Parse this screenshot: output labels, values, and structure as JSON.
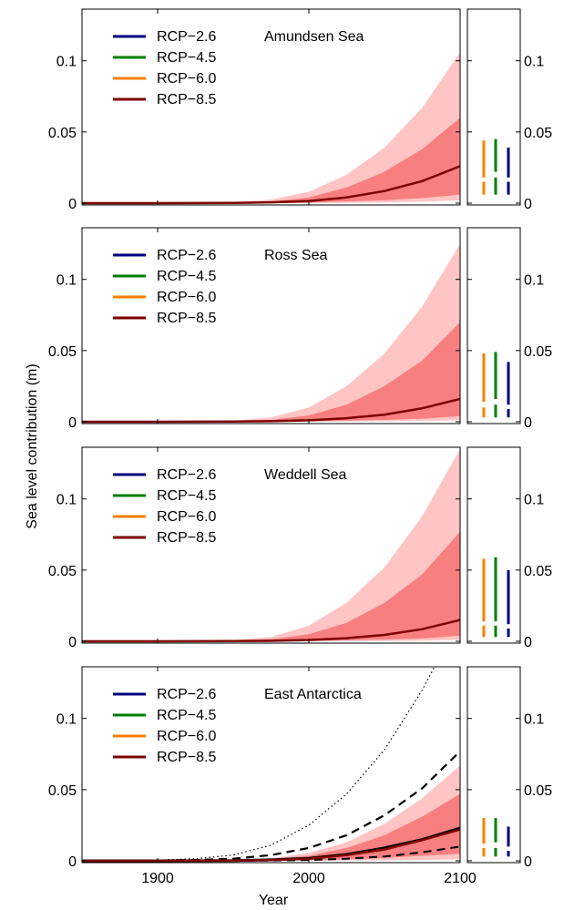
{
  "ylabel": "Sea level contribution (m)",
  "xlabel": "Year",
  "xticks": [
    "1900",
    "2000",
    "2100"
  ],
  "yticks": [
    "0",
    "0.05",
    "0.1"
  ],
  "legend": [
    {
      "label": "RCP−2.6",
      "color": "#00007f"
    },
    {
      "label": "RCP−4.5",
      "color": "#007f00"
    },
    {
      "label": "RCP−6.0",
      "color": "#ff7f00"
    },
    {
      "label": "RCP−8.5",
      "color": "#7f0000"
    }
  ],
  "colors": {
    "band_outer": "#ffc4c4",
    "band_inner": "#f77f7f",
    "median": "#7f0000",
    "axis": "#000000"
  },
  "chart_data": [
    {
      "type": "area",
      "title": "Amundsen Sea",
      "xlim": [
        1850,
        2100
      ],
      "ylim": [
        0,
        0.135
      ],
      "years": [
        1850,
        1900,
        1950,
        1975,
        2000,
        2025,
        2050,
        2075,
        2100
      ],
      "median": [
        0,
        0,
        0.0002,
        0.0006,
        0.0015,
        0.004,
        0.0085,
        0.0155,
        0.026
      ],
      "band_inner": {
        "lower": [
          0,
          0,
          0,
          0.0002,
          0.0005,
          0.0012,
          0.002,
          0.0035,
          0.006
        ],
        "upper": [
          0,
          0,
          0.0004,
          0.0012,
          0.004,
          0.011,
          0.022,
          0.038,
          0.06
        ]
      },
      "band_outer": {
        "lower": [
          0,
          0,
          0,
          0,
          0,
          0.0002,
          0.0005,
          0.001,
          0.002
        ],
        "upper": [
          0,
          0,
          0.0006,
          0.0025,
          0.008,
          0.02,
          0.039,
          0.067,
          0.106
        ]
      },
      "ranges_2100": [
        {
          "scenario": "RCP−6.0",
          "inner": [
            0.018,
            0.044
          ],
          "outer": [
            0.006,
            0.015
          ]
        },
        {
          "scenario": "RCP−4.5",
          "inner": [
            0.022,
            0.045
          ],
          "outer": [
            0.006,
            0.018
          ]
        },
        {
          "scenario": "RCP−2.6",
          "inner": [
            0.018,
            0.039
          ],
          "outer": [
            0.006,
            0.015
          ]
        }
      ]
    },
    {
      "type": "area",
      "title": "Ross Sea",
      "xlim": [
        1850,
        2100
      ],
      "ylim": [
        0,
        0.135
      ],
      "years": [
        1850,
        1900,
        1950,
        1975,
        2000,
        2025,
        2050,
        2075,
        2100
      ],
      "median": [
        0,
        0,
        0.0001,
        0.0004,
        0.001,
        0.0025,
        0.005,
        0.0095,
        0.016
      ],
      "band_inner": {
        "lower": [
          0,
          0,
          0,
          0.0001,
          0.0003,
          0.0008,
          0.0013,
          0.0022,
          0.004
        ],
        "upper": [
          0,
          0,
          0.0004,
          0.0013,
          0.0045,
          0.012,
          0.025,
          0.043,
          0.07
        ]
      },
      "band_outer": {
        "lower": [
          0,
          0,
          0,
          0,
          0,
          0.0001,
          0.0003,
          0.0006,
          0.001
        ],
        "upper": [
          0,
          0,
          0.0007,
          0.003,
          0.01,
          0.025,
          0.048,
          0.081,
          0.125
        ]
      },
      "ranges_2100": [
        {
          "scenario": "RCP−6.0",
          "inner": [
            0.014,
            0.048
          ],
          "outer": [
            0.003,
            0.01
          ]
        },
        {
          "scenario": "RCP−4.5",
          "inner": [
            0.016,
            0.049
          ],
          "outer": [
            0.003,
            0.012
          ]
        },
        {
          "scenario": "RCP−2.6",
          "inner": [
            0.012,
            0.042
          ],
          "outer": [
            0.003,
            0.009
          ]
        }
      ]
    },
    {
      "type": "area",
      "title": "Weddell Sea",
      "xlim": [
        1850,
        2100
      ],
      "ylim": [
        0,
        0.135
      ],
      "years": [
        1850,
        1900,
        1950,
        1975,
        2000,
        2025,
        2050,
        2075,
        2100
      ],
      "median": [
        0,
        0,
        0.0001,
        0.0003,
        0.0009,
        0.0022,
        0.0045,
        0.0085,
        0.015
      ],
      "band_inner": {
        "lower": [
          0,
          0,
          0,
          0.0001,
          0.0003,
          0.0007,
          0.0012,
          0.002,
          0.004
        ],
        "upper": [
          0,
          0,
          0.0004,
          0.0015,
          0.005,
          0.013,
          0.027,
          0.047,
          0.077
        ]
      },
      "band_outer": {
        "lower": [
          0,
          0,
          0,
          0,
          0,
          0.0001,
          0.0002,
          0.0005,
          0.001
        ],
        "upper": [
          0,
          0,
          0.0008,
          0.003,
          0.011,
          0.027,
          0.052,
          0.088,
          0.135
        ]
      },
      "ranges_2100": [
        {
          "scenario": "RCP−6.0",
          "inner": [
            0.014,
            0.058
          ],
          "outer": [
            0.003,
            0.011
          ]
        },
        {
          "scenario": "RCP−4.5",
          "inner": [
            0.014,
            0.059
          ],
          "outer": [
            0.003,
            0.011
          ]
        },
        {
          "scenario": "RCP−2.6",
          "inner": [
            0.012,
            0.05
          ],
          "outer": [
            0.003,
            0.009
          ]
        }
      ]
    },
    {
      "type": "area",
      "title": "East Antarctica",
      "xlim": [
        1850,
        2100
      ],
      "ylim": [
        0,
        0.135
      ],
      "years": [
        1850,
        1900,
        1950,
        1975,
        2000,
        2025,
        2050,
        2075,
        2100
      ],
      "median": [
        0,
        0,
        0.0002,
        0.0006,
        0.0015,
        0.004,
        0.008,
        0.0145,
        0.022
      ],
      "band_inner": {
        "lower": [
          0,
          0,
          0,
          0.0002,
          0.0005,
          0.001,
          0.002,
          0.0035,
          0.005
        ],
        "upper": [
          0,
          0,
          0.0004,
          0.0012,
          0.0035,
          0.009,
          0.018,
          0.031,
          0.047
        ]
      },
      "band_outer": {
        "lower": [
          0,
          0,
          0,
          0,
          0,
          0.0001,
          0.0003,
          0.0006,
          0.001
        ],
        "upper": [
          0,
          0,
          0.0006,
          0.0018,
          0.0055,
          0.013,
          0.026,
          0.044,
          0.067
        ]
      },
      "dashed": {
        "years": [
          1850,
          1900,
          1925,
          1950,
          1975,
          2000,
          2025,
          2050,
          2075,
          2100
        ],
        "values": [
          0,
          0.0002,
          0.0006,
          0.0015,
          0.004,
          0.009,
          0.018,
          0.032,
          0.051,
          0.077
        ]
      },
      "solid_black": {
        "years": [
          1850,
          1900,
          1950,
          1975,
          2000,
          2025,
          2050,
          2075,
          2100
        ],
        "values": [
          0,
          0,
          0.0002,
          0.0007,
          0.0018,
          0.0045,
          0.009,
          0.015,
          0.023
        ]
      },
      "dashed_lower": {
        "years": [
          1850,
          1900,
          1950,
          1975,
          2000,
          2025,
          2050,
          2075,
          2100
        ],
        "values": [
          0,
          0,
          0,
          0.0002,
          0.0006,
          0.0015,
          0.003,
          0.006,
          0.01
        ]
      },
      "dotted": {
        "years": [
          1850,
          1900,
          1925,
          1950,
          1975,
          2000,
          2025,
          2050,
          2075,
          2085
        ],
        "values": [
          0,
          0.0005,
          0.0015,
          0.004,
          0.011,
          0.025,
          0.047,
          0.078,
          0.12,
          0.14
        ]
      },
      "ranges_2100": [
        {
          "scenario": "RCP−6.0",
          "inner": [
            0.012,
            0.03
          ],
          "outer": [
            0.003,
            0.009
          ]
        },
        {
          "scenario": "RCP−4.5",
          "inner": [
            0.013,
            0.03
          ],
          "outer": [
            0.003,
            0.009
          ]
        },
        {
          "scenario": "RCP−2.6",
          "inner": [
            0.01,
            0.024
          ],
          "outer": [
            0.003,
            0.007
          ]
        }
      ]
    }
  ]
}
